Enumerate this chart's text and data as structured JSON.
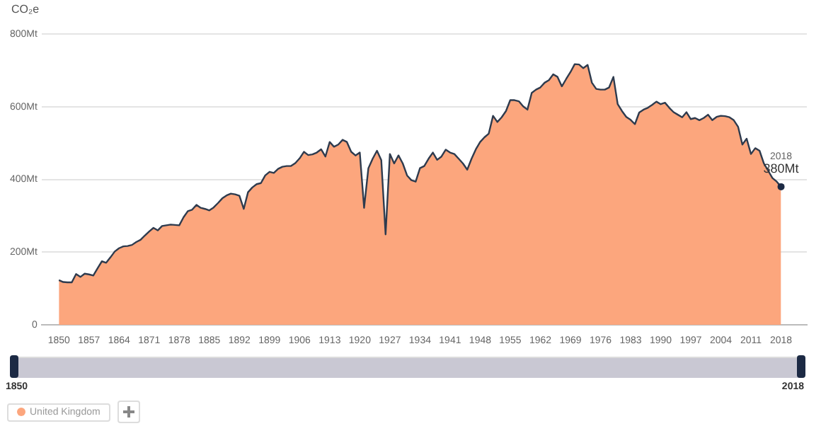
{
  "chart_data": {
    "type": "area",
    "ylabel": "CO₂e",
    "x": [
      1850,
      1851,
      1852,
      1853,
      1854,
      1855,
      1856,
      1857,
      1858,
      1859,
      1860,
      1861,
      1862,
      1863,
      1864,
      1865,
      1866,
      1867,
      1868,
      1869,
      1870,
      1871,
      1872,
      1873,
      1874,
      1875,
      1876,
      1877,
      1878,
      1879,
      1880,
      1881,
      1882,
      1883,
      1884,
      1885,
      1886,
      1887,
      1888,
      1889,
      1890,
      1891,
      1892,
      1893,
      1894,
      1895,
      1896,
      1897,
      1898,
      1899,
      1900,
      1901,
      1902,
      1903,
      1904,
      1905,
      1906,
      1907,
      1908,
      1909,
      1910,
      1911,
      1912,
      1913,
      1914,
      1915,
      1916,
      1917,
      1918,
      1919,
      1920,
      1921,
      1922,
      1923,
      1924,
      1925,
      1926,
      1927,
      1928,
      1929,
      1930,
      1931,
      1932,
      1933,
      1934,
      1935,
      1936,
      1937,
      1938,
      1939,
      1940,
      1941,
      1942,
      1943,
      1944,
      1945,
      1946,
      1947,
      1948,
      1949,
      1950,
      1951,
      1952,
      1953,
      1954,
      1955,
      1956,
      1957,
      1958,
      1959,
      1960,
      1961,
      1962,
      1963,
      1964,
      1965,
      1966,
      1967,
      1968,
      1969,
      1970,
      1971,
      1972,
      1973,
      1974,
      1975,
      1976,
      1977,
      1978,
      1979,
      1980,
      1981,
      1982,
      1983,
      1984,
      1985,
      1986,
      1987,
      1988,
      1989,
      1990,
      1991,
      1992,
      1993,
      1994,
      1995,
      1996,
      1997,
      1998,
      1999,
      2000,
      2001,
      2002,
      2003,
      2004,
      2005,
      2006,
      2007,
      2008,
      2009,
      2010,
      2011,
      2012,
      2013,
      2014,
      2015,
      2016,
      2017,
      2018
    ],
    "series": [
      {
        "name": "United Kingdom",
        "color": "#fca67d",
        "values": [
          123,
          118,
          117,
          117,
          140,
          132,
          141,
          139,
          136,
          156,
          175,
          171,
          186,
          202,
          211,
          216,
          217,
          220,
          228,
          234,
          246,
          257,
          267,
          260,
          272,
          274,
          276,
          275,
          274,
          296,
          313,
          317,
          330,
          322,
          319,
          315,
          323,
          335,
          348,
          356,
          361,
          359,
          355,
          319,
          365,
          378,
          387,
          390,
          411,
          421,
          418,
          429,
          435,
          437,
          437,
          445,
          458,
          476,
          467,
          469,
          474,
          483,
          463,
          503,
          490,
          496,
          509,
          503,
          476,
          466,
          474,
          322,
          431,
          457,
          479,
          453,
          249,
          470,
          444,
          466,
          444,
          411,
          398,
          394,
          431,
          437,
          457,
          474,
          454,
          463,
          482,
          474,
          470,
          457,
          444,
          427,
          457,
          483,
          503,
          516,
          526,
          575,
          558,
          571,
          588,
          618,
          618,
          615,
          601,
          592,
          638,
          647,
          653,
          666,
          673,
          689,
          682,
          656,
          676,
          695,
          717,
          716,
          706,
          715,
          666,
          649,
          647,
          647,
          653,
          682,
          607,
          588,
          572,
          564,
          552,
          584,
          592,
          597,
          605,
          614,
          607,
          611,
          597,
          585,
          578,
          571,
          585,
          566,
          569,
          563,
          569,
          578,
          563,
          572,
          575,
          574,
          571,
          563,
          545,
          496,
          512,
          470,
          486,
          479,
          444,
          424,
          404,
          394,
          380
        ]
      }
    ],
    "xlim": [
      1846,
      2024
    ],
    "xticks": [
      1850,
      1857,
      1864,
      1871,
      1878,
      1885,
      1892,
      1899,
      1906,
      1913,
      1920,
      1927,
      1934,
      1941,
      1948,
      1955,
      1962,
      1969,
      1976,
      1983,
      1990,
      1997,
      2004,
      2011,
      2018
    ],
    "ylim": [
      0,
      800
    ],
    "yticks": [
      0,
      {
        "value": 200,
        "label": "200Mt"
      },
      {
        "value": 400,
        "label": "400Mt"
      },
      {
        "value": 600,
        "label": "600Mt"
      },
      {
        "value": 800,
        "label": "800Mt"
      }
    ],
    "grid": "y",
    "legend": "bottom left",
    "marker": "none",
    "annotations": [
      {
        "text": "2018",
        "x": 2018,
        "y": 380
      },
      {
        "text": "380Mt",
        "x": 2018,
        "y": 380
      },
      "1850",
      "2018"
    ]
  }
}
